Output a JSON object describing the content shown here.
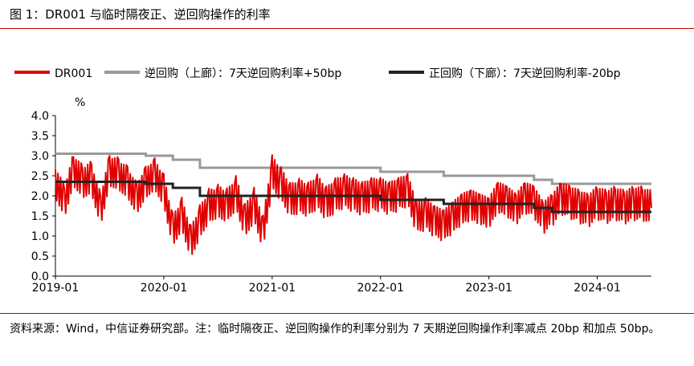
{
  "header": {
    "title": "图 1：DR001 与临时隔夜正、逆回购操作的利率"
  },
  "footer": {
    "source": "资料来源：Wind，中信证券研究部。注：临时隔夜正、逆回购操作的利率分别为 7 天期逆回购操作利率减点 20bp 和加点 50bp。"
  },
  "chart_data": {
    "type": "line",
    "ylabel": "%",
    "ylim": [
      0.0,
      4.0
    ],
    "yticks": [
      "0.0",
      "0.5",
      "1.0",
      "1.5",
      "2.0",
      "2.5",
      "3.0",
      "3.5",
      "4.0"
    ],
    "xlim": [
      "2019-01",
      "2024-07"
    ],
    "xticks": [
      "2019-01",
      "2020-01",
      "2021-01",
      "2022-01",
      "2023-01",
      "2024-01"
    ],
    "legend_position": "top",
    "colors": {
      "dr001": "#e00000",
      "upper": "#999999",
      "lower": "#222222"
    },
    "series": [
      {
        "name": "DR001",
        "x": [
          "2019-01",
          "2019-02",
          "2019-03",
          "2019-04",
          "2019-05",
          "2019-06",
          "2019-07",
          "2019-08",
          "2019-09",
          "2019-10",
          "2019-11",
          "2019-12",
          "2020-01",
          "2020-02",
          "2020-03",
          "2020-04",
          "2020-05",
          "2020-06",
          "2020-07",
          "2020-08",
          "2020-09",
          "2020-10",
          "2020-11",
          "2020-12",
          "2021-01",
          "2021-02",
          "2021-03",
          "2021-04",
          "2021-05",
          "2021-06",
          "2021-07",
          "2021-08",
          "2021-09",
          "2021-10",
          "2021-11",
          "2021-12",
          "2022-01",
          "2022-02",
          "2022-03",
          "2022-04",
          "2022-05",
          "2022-06",
          "2022-07",
          "2022-08",
          "2022-09",
          "2022-10",
          "2022-11",
          "2022-12",
          "2023-01",
          "2023-02",
          "2023-03",
          "2023-04",
          "2023-05",
          "2023-06",
          "2023-07",
          "2023-08",
          "2023-09",
          "2023-10",
          "2023-11",
          "2023-12",
          "2024-01",
          "2024-02",
          "2024-03",
          "2024-04",
          "2024-05",
          "2024-06",
          "2024-07"
        ],
        "values": [
          2.4,
          1.9,
          2.7,
          2.4,
          2.5,
          1.7,
          2.7,
          2.6,
          2.4,
          2.0,
          2.4,
          2.6,
          2.2,
          1.2,
          1.6,
          0.9,
          1.4,
          1.8,
          1.9,
          1.8,
          2.1,
          1.4,
          1.8,
          1.1,
          2.6,
          2.3,
          1.9,
          2.0,
          1.9,
          2.1,
          1.8,
          2.0,
          2.1,
          2.0,
          1.9,
          2.0,
          2.0,
          1.9,
          2.0,
          2.1,
          1.4,
          1.5,
          1.3,
          1.2,
          1.4,
          1.6,
          1.7,
          1.6,
          1.5,
          1.9,
          1.8,
          1.6,
          1.9,
          1.8,
          1.4,
          1.6,
          1.9,
          1.8,
          1.7,
          1.6,
          1.8,
          1.7,
          1.8,
          1.7,
          1.8,
          1.8,
          1.7
        ]
      },
      {
        "name": "逆回购（上廊）：7天逆回购利率+50bp",
        "x": [
          "2019-01",
          "2019-11",
          "2020-02",
          "2020-03",
          "2020-05",
          "2021-01",
          "2022-01",
          "2022-08",
          "2023-06",
          "2023-08",
          "2024-07"
        ],
        "values": [
          3.05,
          3.0,
          2.9,
          2.9,
          2.7,
          2.7,
          2.6,
          2.5,
          2.4,
          2.3,
          2.3
        ]
      },
      {
        "name": "正回购（下廊）：7天逆回购利率-20bp",
        "x": [
          "2019-01",
          "2019-11",
          "2020-02",
          "2020-03",
          "2020-05",
          "2021-01",
          "2022-01",
          "2022-08",
          "2023-06",
          "2023-08",
          "2024-07"
        ],
        "values": [
          2.35,
          2.3,
          2.2,
          2.2,
          2.0,
          2.0,
          1.9,
          1.8,
          1.7,
          1.6,
          1.6
        ]
      }
    ]
  }
}
